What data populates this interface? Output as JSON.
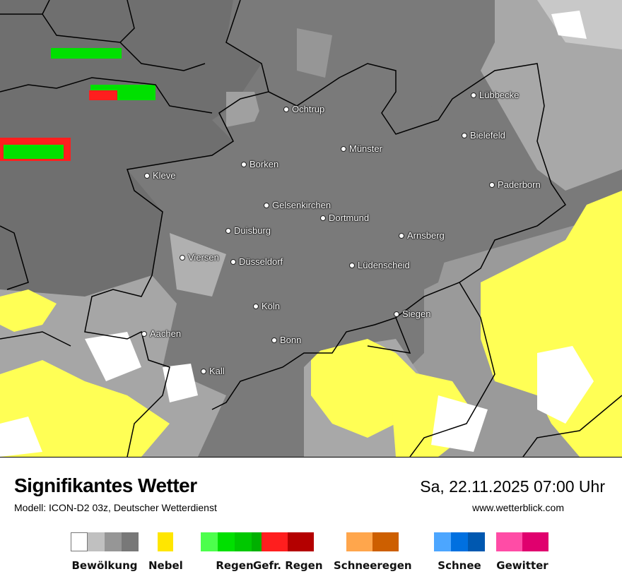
{
  "header": {
    "title": "Signifikantes Wetter",
    "model": "Modell: ICON-D2 03z, Deutscher Wetterdienst",
    "datetime": "Sa, 22.11.2025 07:00 Uhr",
    "website": "www.wetterblick.com"
  },
  "map": {
    "cities": [
      "Lübbecke",
      "Ochtrup",
      "Bielefeld",
      "Münster",
      "Borken",
      "Kleve",
      "Paderborn",
      "Gelsenkirchen",
      "Dortmund",
      "Duisburg",
      "Arnsberg",
      "Viersen",
      "Düsseldorf",
      "Lüdenscheid",
      "Köln",
      "Siegen",
      "Aachen",
      "Bonn",
      "Kall"
    ]
  },
  "legend": [
    {
      "label": "Bewölkung",
      "colors": [
        "#ffffff",
        "#c0c0c0",
        "#969696",
        "#787878"
      ]
    },
    {
      "label": "Nebel",
      "colors": [
        "#ffe600"
      ]
    },
    {
      "label": "Regen",
      "colors": [
        "#4cff4c",
        "#00e000",
        "#00c800",
        "#00b000"
      ]
    },
    {
      "label": "Gefr. Regen",
      "colors": [
        "#ff1e1e",
        "#b40000"
      ]
    },
    {
      "label": "Schneeregen",
      "colors": [
        "#ffa64c",
        "#cd5f00"
      ]
    },
    {
      "label": "Schnee",
      "colors": [
        "#4ca6ff",
        "#0070e0",
        "#0058b0"
      ]
    },
    {
      "label": "Gewitter",
      "colors": [
        "#ff4ca6",
        "#e0006e"
      ]
    }
  ]
}
